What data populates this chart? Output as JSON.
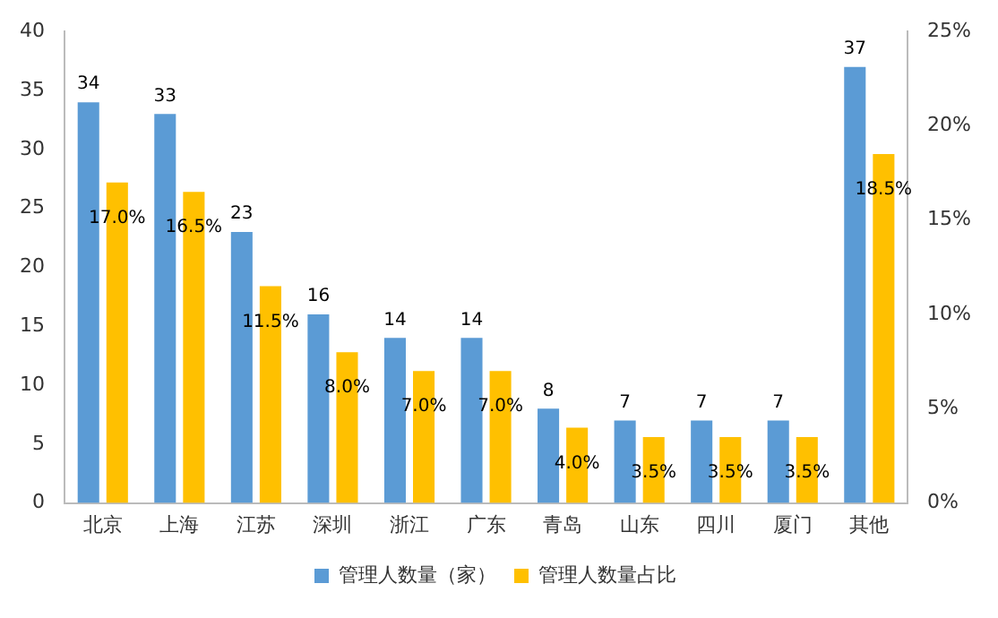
{
  "chart_data": {
    "type": "bar",
    "categories": [
      "北京",
      "上海",
      "江苏",
      "深圳",
      "浙江",
      "广东",
      "青岛",
      "山东",
      "四川",
      "厦门",
      "其他"
    ],
    "series": [
      {
        "name": "管理人数量（家）",
        "color": "#5b9bd5",
        "values": [
          34,
          33,
          23,
          16,
          14,
          14,
          8,
          7,
          7,
          7,
          37
        ],
        "value_labels": [
          "34",
          "33",
          "23",
          "16",
          "14",
          "14",
          "8",
          "7",
          "7",
          "7",
          "37"
        ]
      },
      {
        "name": "管理人数量占比",
        "color": "#ffc000",
        "axis": "y2",
        "values": [
          17.0,
          16.5,
          11.5,
          8.0,
          7.0,
          7.0,
          4.0,
          3.5,
          3.5,
          3.5,
          18.5
        ],
        "value_labels": [
          "17.0%",
          "16.5%",
          "11.5%",
          "8.0%",
          "7.0%",
          "7.0%",
          "4.0%",
          "3.5%",
          "3.5%",
          "3.5%",
          "18.5%"
        ]
      }
    ],
    "ylim": [
      0,
      40
    ],
    "yticks": [
      0,
      5,
      10,
      15,
      20,
      25,
      30,
      35,
      40
    ],
    "y2lim": [
      0,
      25
    ],
    "y2ticks": [
      {
        "value": 0,
        "label": "0%"
      },
      {
        "value": 5,
        "label": "5%"
      },
      {
        "value": 10,
        "label": "10%"
      },
      {
        "value": 15,
        "label": "15%"
      },
      {
        "value": 20,
        "label": "20%"
      },
      {
        "value": 25,
        "label": "25%"
      }
    ],
    "grid": false,
    "legend": "bottom"
  }
}
